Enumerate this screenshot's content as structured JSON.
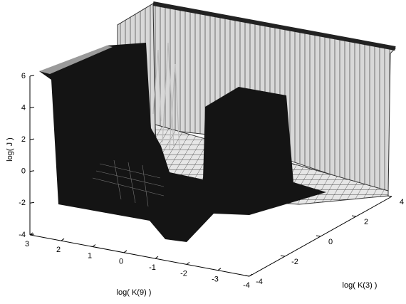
{
  "chart_data": {
    "type": "surface3d",
    "zlabel": "log( J )",
    "xlabel": "log( K(9) )",
    "ylabel": "log( K(3) )",
    "zlim": [
      -4,
      6
    ],
    "zticks": [
      -4,
      -2,
      0,
      2,
      4,
      6
    ],
    "xlim": [
      3,
      -4
    ],
    "xticks": [
      3,
      2,
      1,
      0,
      -1,
      -2,
      -3,
      -4
    ],
    "ylim": [
      -4,
      4
    ],
    "yticks": [
      -4,
      -2,
      0,
      2,
      4
    ]
  }
}
